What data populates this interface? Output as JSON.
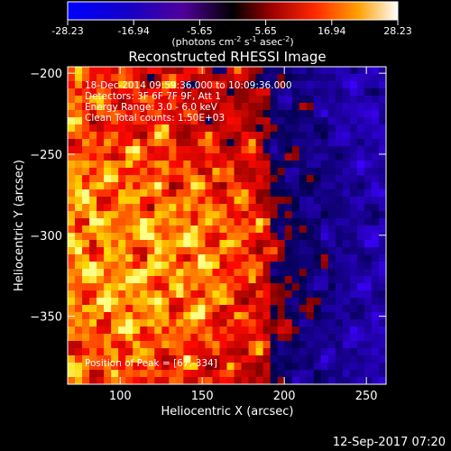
{
  "chart_data": {
    "type": "heatmap",
    "title": "Reconstructed RHESSI Image",
    "xlabel": "Heliocentric X (arcsec)",
    "ylabel": "Heliocentric Y (arcsec)",
    "xlim": [
      68,
      262
    ],
    "ylim": [
      -392,
      -196
    ],
    "x_ticks": [
      100,
      150,
      200,
      250
    ],
    "y_ticks": [
      -200,
      -250,
      -300,
      -350
    ],
    "colorbar": {
      "min": -28.23,
      "max": 28.23,
      "ticks": [
        "-28.23",
        "-16.94",
        "-5.65",
        "5.65",
        "16.94",
        "28.23"
      ],
      "unit_prefix": "(photons cm",
      "unit_sup1": "-2",
      "unit_mid": " s",
      "unit_sup2": "-1",
      "unit_suffix": " asec",
      "unit_sup3": "-2",
      "unit_close": ")"
    },
    "annotations": [
      "18-Dec-2014 09:59:36.000 to 10:09:36.000",
      "Detectors: 3F 6F 7F 9F, Att 1",
      "Energy Range: 3.0 - 6.0 keV",
      "Clean    Total counts: 1.50E+03"
    ],
    "peak_label": "Position of Peak = [67,-334]",
    "grid": false
  },
  "footer": {
    "timestamp": "12-Sep-2017 07:20"
  }
}
